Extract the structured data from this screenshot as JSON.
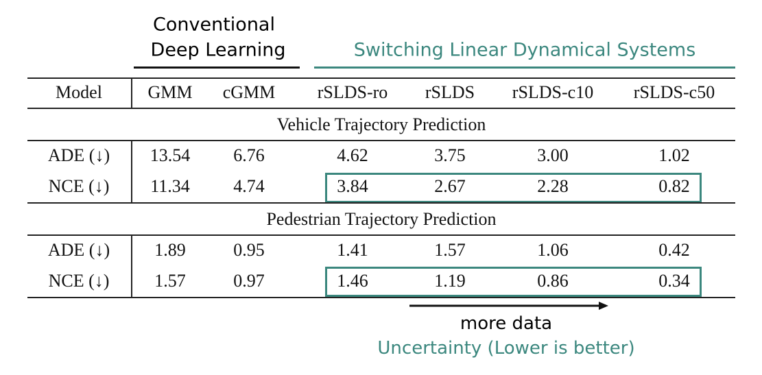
{
  "header": {
    "conventional": [
      "Conventional",
      "Deep Learning"
    ],
    "slds": "Switching Linear Dynamical Systems"
  },
  "table": {
    "columns": [
      "Model",
      "GMM",
      "cGMM",
      "rSLDS-ro",
      "rSLDS",
      "rSLDS-c10",
      "rSLDS-c50"
    ],
    "sections": [
      {
        "title": "Vehicle Trajectory Prediction",
        "rows": [
          [
            "ADE (↓)",
            "13.54",
            "6.76",
            "4.62",
            "3.75",
            "3.00",
            "1.02"
          ],
          [
            "NCE (↓)",
            "11.34",
            "4.74",
            "3.84",
            "2.67",
            "2.28",
            "0.82"
          ]
        ]
      },
      {
        "title": "Pedestrian Trajectory Prediction",
        "rows": [
          [
            "ADE (↓)",
            "1.89",
            "0.95",
            "1.41",
            "1.57",
            "1.06",
            "0.42"
          ],
          [
            "NCE (↓)",
            "1.57",
            "0.97",
            "1.46",
            "1.19",
            "0.86",
            "0.34"
          ]
        ]
      }
    ]
  },
  "footer": {
    "arrow_label": "more data",
    "caption": "Uncertainty (Lower is better)"
  }
}
